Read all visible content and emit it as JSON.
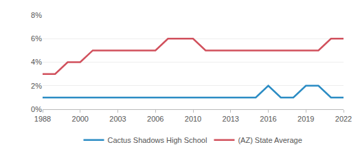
{
  "chart_data": {
    "type": "line",
    "categories": [
      "1988",
      null,
      null,
      "2000",
      null,
      null,
      "2003",
      null,
      null,
      "2006",
      null,
      null,
      "2010",
      null,
      null,
      "2013",
      null,
      null,
      "2016",
      null,
      null,
      "2019",
      null,
      null,
      "2022"
    ],
    "series": [
      {
        "name": "Cactus Shadows High School",
        "color": "#2b8cc4",
        "values": [
          1,
          1,
          1,
          1,
          1,
          1,
          1,
          1,
          1,
          1,
          1,
          1,
          1,
          1,
          1,
          1,
          1,
          1,
          2,
          1,
          1,
          2,
          2,
          1,
          1
        ]
      },
      {
        "name": "(AZ) State Average",
        "color": "#d1505c",
        "values": [
          3,
          3,
          4,
          4,
          5,
          5,
          5,
          5,
          5,
          5,
          6,
          6,
          6,
          5,
          5,
          5,
          5,
          5,
          5,
          5,
          5,
          5,
          5,
          6,
          6
        ]
      }
    ],
    "ylim": [
      0,
      8
    ],
    "yticks": [
      {
        "value": 0,
        "label": "0%"
      },
      {
        "value": 2,
        "label": "2%"
      },
      {
        "value": 4,
        "label": "4%"
      },
      {
        "value": 6,
        "label": "6%"
      },
      {
        "value": 8,
        "label": "8%"
      }
    ],
    "grid": true,
    "legend": "bottom"
  }
}
